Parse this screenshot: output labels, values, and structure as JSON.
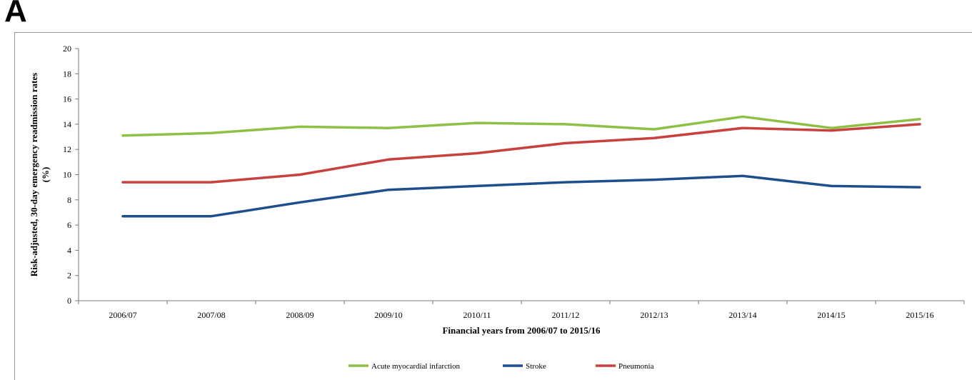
{
  "panel_label": "A",
  "chart_data": {
    "type": "line",
    "title": "",
    "xlabel": "Financial years from 2006/07 to 2015/16",
    "ylabel_line1": "Risk-adjusted, 30-day emergency readmission rates",
    "ylabel_line2": "(%)",
    "ylim": [
      0,
      20
    ],
    "yticks": [
      0,
      2,
      4,
      6,
      8,
      10,
      12,
      14,
      16,
      18,
      20
    ],
    "grid": false,
    "legend_position": "bottom-center",
    "categories": [
      "2006/07",
      "2007/08",
      "2008/09",
      "2009/10",
      "2010/11",
      "2011/12",
      "2012/13",
      "2013/14",
      "2014/15",
      "2015/16"
    ],
    "series": [
      {
        "name": "Acute myocardial infarction",
        "color": "#8dc044",
        "values": [
          13.1,
          13.3,
          13.8,
          13.7,
          14.1,
          14.0,
          13.6,
          14.6,
          13.7,
          14.4
        ]
      },
      {
        "name": "Stroke",
        "color": "#1f4e8c",
        "values": [
          6.7,
          6.7,
          7.8,
          8.8,
          9.1,
          9.4,
          9.6,
          9.9,
          9.1,
          9.0
        ]
      },
      {
        "name": "Pneumonia",
        "color": "#c8413e",
        "values": [
          9.4,
          9.4,
          10.0,
          11.2,
          11.7,
          12.5,
          12.9,
          13.7,
          13.5,
          14.0
        ]
      }
    ]
  }
}
